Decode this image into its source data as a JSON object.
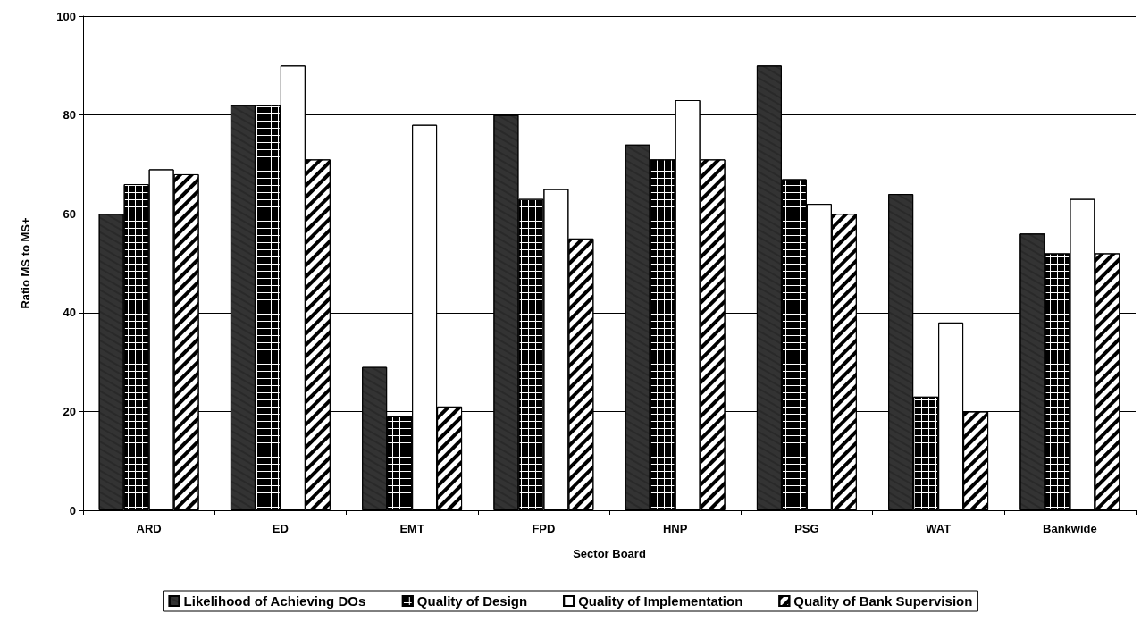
{
  "chart_data": {
    "type": "bar",
    "xlabel": "Sector Board",
    "ylabel": "Ratio MS to MS+",
    "categories": [
      "ARD",
      "ED",
      "EMT",
      "FPD",
      "HNP",
      "PSG",
      "WAT",
      "Bankwide"
    ],
    "series": [
      {
        "name": "Likelihood of Achieving DOs",
        "color": "#333333",
        "values": [
          60,
          82,
          29,
          80,
          74,
          90,
          64,
          56
        ]
      },
      {
        "name": "Quality of Design",
        "color": "#ffffff",
        "values": [
          66,
          82,
          19,
          63,
          71,
          67,
          23,
          52
        ]
      },
      {
        "name": "Quality of Implementation",
        "color": "#ffffff",
        "values": [
          69,
          90,
          78,
          65,
          83,
          62,
          38,
          63
        ]
      },
      {
        "name": "Quality of Bank Supervision",
        "color": "#ffffff",
        "values": [
          68,
          71,
          21,
          55,
          71,
          60,
          20,
          52
        ]
      }
    ],
    "ylim": [
      0,
      100
    ],
    "yticks": [
      0,
      20,
      40,
      60,
      80,
      100
    ],
    "grid": "y",
    "legend": "bottom"
  }
}
